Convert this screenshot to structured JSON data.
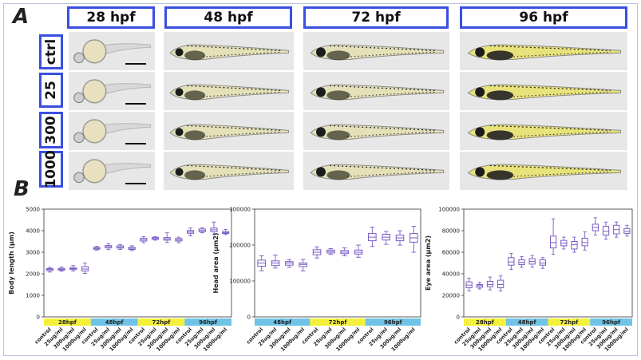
{
  "panel_a": {
    "label": "A",
    "stages": [
      "28 hpf",
      "48 hpf",
      "72 hpf",
      "96 hpf"
    ],
    "groups": [
      "ctrl",
      "25",
      "300",
      "1000"
    ]
  },
  "panel_b": {
    "label": "B"
  },
  "colors": {
    "box": "#7a5cc4",
    "header_border": "#3a4fe0",
    "yellow_band": "#f4f03a",
    "blue_band": "#6ec3e6"
  },
  "chart_data": [
    {
      "type": "box",
      "ylabel": "Body length (μm)",
      "ylim": [
        0,
        5000
      ],
      "yticks": [
        "0",
        "1000",
        "2000",
        "3000",
        "4000",
        "5000"
      ],
      "stage_bands": [
        {
          "label": "28hpf",
          "color": "yellow"
        },
        {
          "label": "48hpf",
          "color": "blue"
        },
        {
          "label": "72hpf",
          "color": "yellow"
        },
        {
          "label": "96hpf",
          "color": "blue"
        }
      ],
      "categories": [
        "control",
        "25ug/ml",
        "300ug/ml",
        "1000ug/ml",
        "control",
        "25ug/ml",
        "300ug/ml",
        "1000ug/ml",
        "control",
        "25ug/ml",
        "300ug/ml",
        "1000ug/ml",
        "control",
        "25ug/ml",
        "300ug/ml",
        "1000ug/ml"
      ],
      "boxes": [
        [
          2080,
          2150,
          2200,
          2240,
          2300
        ],
        [
          2120,
          2170,
          2210,
          2250,
          2310
        ],
        [
          2130,
          2200,
          2240,
          2290,
          2380
        ],
        [
          2020,
          2130,
          2220,
          2330,
          2500
        ],
        [
          3100,
          3140,
          3180,
          3220,
          3280
        ],
        [
          3120,
          3200,
          3260,
          3310,
          3400
        ],
        [
          3130,
          3190,
          3240,
          3300,
          3360
        ],
        [
          3080,
          3130,
          3180,
          3230,
          3300
        ],
        [
          3440,
          3520,
          3580,
          3650,
          3720
        ],
        [
          3560,
          3600,
          3640,
          3690,
          3720
        ],
        [
          3450,
          3560,
          3620,
          3680,
          3900
        ],
        [
          3440,
          3520,
          3570,
          3640,
          3700
        ],
        [
          3760,
          3880,
          3940,
          4010,
          4120
        ],
        [
          3900,
          3950,
          4010,
          4080,
          4140
        ],
        [
          3820,
          3950,
          4040,
          4120,
          4400
        ],
        [
          3820,
          3870,
          3910,
          3960,
          4060
        ]
      ]
    },
    {
      "type": "box",
      "ylabel": "Head area (μm2)",
      "ylim": [
        0,
        300000
      ],
      "yticks": [
        "0",
        "100000",
        "200000",
        "300000"
      ],
      "stage_bands": [
        {
          "label": "48hpf",
          "color": "blue"
        },
        {
          "label": "72hpf",
          "color": "yellow"
        },
        {
          "label": "96hpf",
          "color": "blue"
        }
      ],
      "categories": [
        "control",
        "25ug/ml",
        "300ug/ml",
        "1000ug/ml",
        "control",
        "25ug/ml",
        "300ug/ml",
        "1000ug/ml",
        "control",
        "25ug/ml",
        "300ug/ml",
        "1000ug/ml"
      ],
      "boxes": [
        [
          128000,
          141000,
          150000,
          158000,
          170000
        ],
        [
          136000,
          143000,
          150000,
          156000,
          172000
        ],
        [
          138000,
          144000,
          150000,
          154000,
          160000
        ],
        [
          128000,
          140000,
          146000,
          150000,
          160000
        ],
        [
          164000,
          173000,
          180000,
          187000,
          195000
        ],
        [
          174000,
          178000,
          182000,
          186000,
          190000
        ],
        [
          170000,
          176000,
          180000,
          185000,
          192000
        ],
        [
          166000,
          175000,
          180000,
          186000,
          200000
        ],
        [
          196000,
          212000,
          222000,
          232000,
          250000
        ],
        [
          202000,
          214000,
          222000,
          230000,
          238000
        ],
        [
          200000,
          212000,
          220000,
          228000,
          240000
        ],
        [
          180000,
          208000,
          220000,
          232000,
          252000
        ]
      ]
    },
    {
      "type": "box",
      "ylabel": "Eye area (μm2)",
      "ylim": [
        0,
        100000
      ],
      "yticks": [
        "0",
        "20000",
        "40000",
        "60000",
        "80000",
        "100000"
      ],
      "stage_bands": [
        {
          "label": "28hpf",
          "color": "yellow"
        },
        {
          "label": "48hpf",
          "color": "blue"
        },
        {
          "label": "72hpf",
          "color": "yellow"
        },
        {
          "label": "96hpf",
          "color": "blue"
        }
      ],
      "categories": [
        "control",
        "25ug/ml",
        "300ug/ml",
        "1000ug/ml",
        "control",
        "25ug/ml",
        "300ug/ml",
        "1000ug/ml",
        "control",
        "25ug/ml",
        "300ug/ml",
        "1000ug/ml",
        "control",
        "25ug/ml",
        "300ug/ml",
        "1000ug/ml"
      ],
      "boxes": [
        [
          24000,
          27000,
          29500,
          32500,
          36000
        ],
        [
          26000,
          27500,
          29000,
          30000,
          32000
        ],
        [
          25000,
          28000,
          30000,
          33000,
          37000
        ],
        [
          24000,
          27000,
          30000,
          34000,
          38000
        ],
        [
          44000,
          48000,
          51000,
          55000,
          59000
        ],
        [
          46000,
          48500,
          50500,
          53000,
          56000
        ],
        [
          46000,
          49000,
          51500,
          54000,
          57000
        ],
        [
          45000,
          48000,
          50000,
          53000,
          55000
        ],
        [
          58000,
          64000,
          69000,
          75000,
          91000
        ],
        [
          63000,
          66000,
          68500,
          71000,
          74000
        ],
        [
          60000,
          63000,
          67000,
          70000,
          74000
        ],
        [
          62000,
          66000,
          69000,
          73000,
          79000
        ],
        [
          76000,
          80000,
          83000,
          86000,
          92000
        ],
        [
          72000,
          76000,
          79500,
          84000,
          88000
        ],
        [
          74000,
          77000,
          81000,
          85000,
          88000
        ],
        [
          75000,
          77500,
          79500,
          82000,
          85000
        ]
      ]
    }
  ]
}
